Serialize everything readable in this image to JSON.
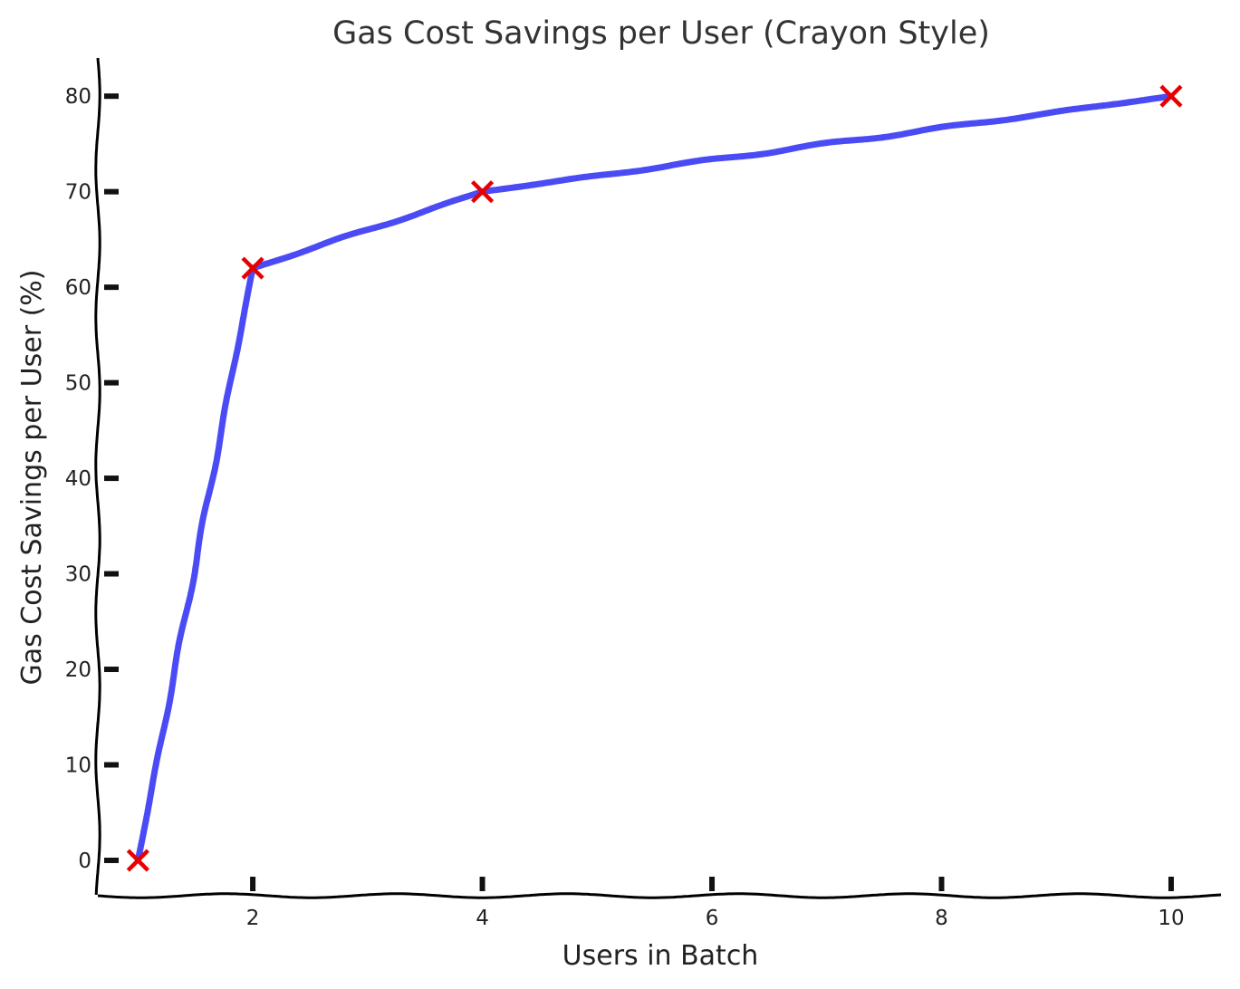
{
  "chart_data": {
    "type": "line",
    "title": "Gas Cost Savings per User (Crayon Style)",
    "xlabel": "Users in Batch",
    "ylabel": "Gas Cost Savings per User (%)",
    "xlim": [
      0.65,
      10.45
    ],
    "ylim": [
      -3.7,
      84
    ],
    "x_ticks": [
      2,
      4,
      6,
      8,
      10
    ],
    "y_ticks": [
      0,
      10,
      20,
      30,
      40,
      50,
      60,
      70,
      80
    ],
    "grid": false,
    "series": [
      {
        "x": [
          1,
          2,
          4,
          10
        ],
        "values": [
          0,
          62,
          70,
          80
        ],
        "line_color": "#4b4bf5",
        "marker_color": "#e80000",
        "marker": "x"
      }
    ]
  }
}
